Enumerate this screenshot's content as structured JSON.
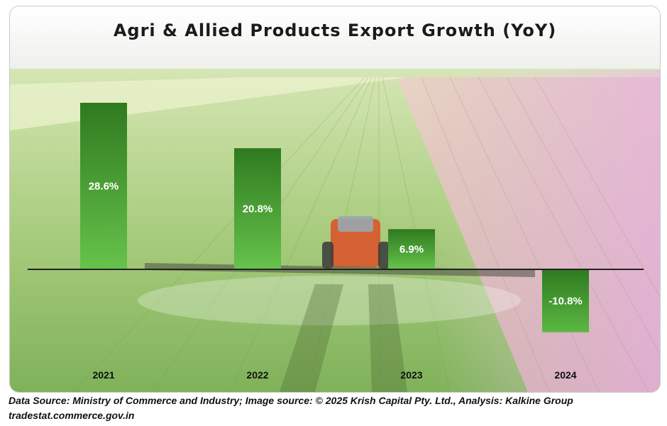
{
  "chart_data": {
    "type": "bar",
    "title": "Agri & Allied Products Export Growth (YoY)",
    "categories": [
      "2021",
      "2022",
      "2023",
      "2024"
    ],
    "values": [
      28.6,
      20.8,
      6.9,
      -10.8
    ],
    "data_labels": [
      "28.6%",
      "20.8%",
      "6.9%",
      "-10.8%"
    ],
    "ylim": [
      -12,
      32
    ],
    "grid": false,
    "legend": "none",
    "bar_color": "#2f8a22"
  },
  "footer": {
    "source_line": "Data Source: Ministry of Commerce and Industry; Image source: © 2025 Krish Capital Pty. Ltd., Analysis: Kalkine Group",
    "url_line": "tradestat.commerce.gov.in"
  }
}
